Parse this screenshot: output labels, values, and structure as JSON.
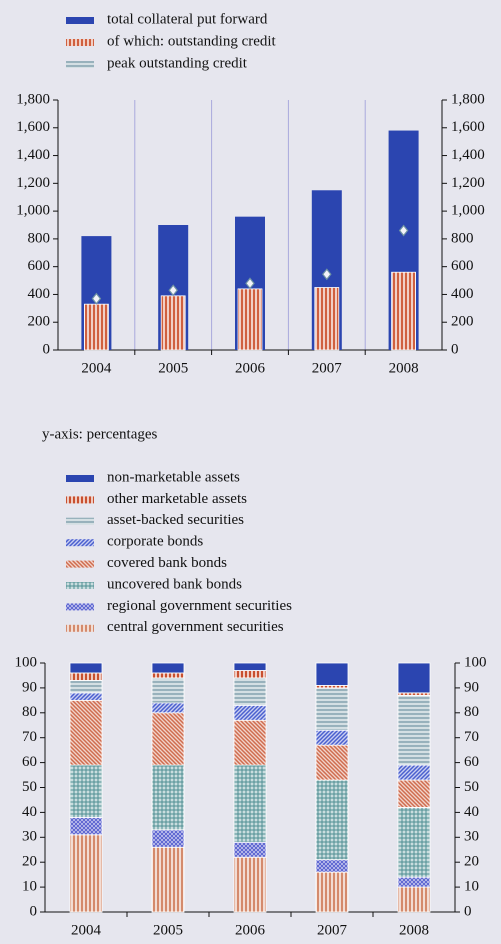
{
  "chart_data": [
    {
      "type": "bar",
      "categories": [
        "2004",
        "2005",
        "2006",
        "2007",
        "2008"
      ],
      "series": [
        {
          "name": "total collateral put forward",
          "color": "#2b45b0",
          "values": [
            820,
            900,
            960,
            1150,
            1580
          ]
        },
        {
          "name": "of which: outstanding credit",
          "color": "#d0603f",
          "values": [
            330,
            390,
            440,
            450,
            560
          ]
        },
        {
          "name": "peak outstanding credit",
          "color": "#6f93a3",
          "values": [
            370,
            430,
            480,
            545,
            860
          ]
        }
      ],
      "ylim": [
        0,
        1800
      ],
      "yticks": [
        0,
        200,
        400,
        600,
        800,
        {
          "value": 1000,
          "label": "1,000"
        },
        {
          "value": 1200,
          "label": "1,200"
        },
        {
          "value": 1400,
          "label": "1,400"
        },
        {
          "value": 1600,
          "label": "1,600"
        },
        {
          "value": 1800,
          "label": "1,800"
        }
      ],
      "y2lim": [
        0,
        1800
      ],
      "y2ticks": [
        0,
        200,
        400,
        600,
        800,
        {
          "value": 1000,
          "label": "1,000"
        },
        {
          "value": 1200,
          "label": "1,200"
        },
        {
          "value": 1400,
          "label": "1,400"
        },
        {
          "value": 1600,
          "label": "1,600"
        },
        {
          "value": 1800,
          "label": "1,800"
        }
      ],
      "grid": true
    },
    {
      "type": "stacked_bar",
      "subtitle": "y-axis: percentages",
      "categories": [
        "2004",
        "2005",
        "2006",
        "2007",
        "2008"
      ],
      "series": [
        {
          "name": "non-marketable assets",
          "color": "#2b45b0",
          "values": [
            4,
            4,
            3,
            9,
            12
          ]
        },
        {
          "name": "other marketable assets",
          "color": "#c8502f",
          "values": [
            3,
            2,
            3,
            1,
            1
          ]
        },
        {
          "name": "asset-backed securities",
          "color": "#6f93a3",
          "values": [
            5,
            10,
            11,
            17,
            28
          ]
        },
        {
          "name": "corporate bonds",
          "color": "#4a5fcf",
          "values": [
            3,
            4,
            6,
            6,
            6
          ]
        },
        {
          "name": "covered bank bonds",
          "color": "#cf6c4e",
          "values": [
            26,
            21,
            18,
            14,
            11
          ]
        },
        {
          "name": "uncovered bank bonds",
          "color": "#4f8f93",
          "values": [
            21,
            26,
            31,
            32,
            28
          ]
        },
        {
          "name": "regional government securities",
          "color": "#5a62d0",
          "values": [
            7,
            7,
            6,
            5,
            4
          ]
        },
        {
          "name": "central government securities",
          "color": "#d48a6c",
          "values": [
            31,
            26,
            22,
            16,
            10
          ]
        }
      ],
      "ylim": [
        0,
        100
      ],
      "yticks": [
        0,
        10,
        20,
        30,
        40,
        50,
        60,
        70,
        80,
        90,
        100
      ],
      "y2lim": [
        0,
        100
      ],
      "y2ticks": [
        0,
        10,
        20,
        30,
        40,
        50,
        60,
        70,
        80,
        90,
        100
      ]
    }
  ]
}
